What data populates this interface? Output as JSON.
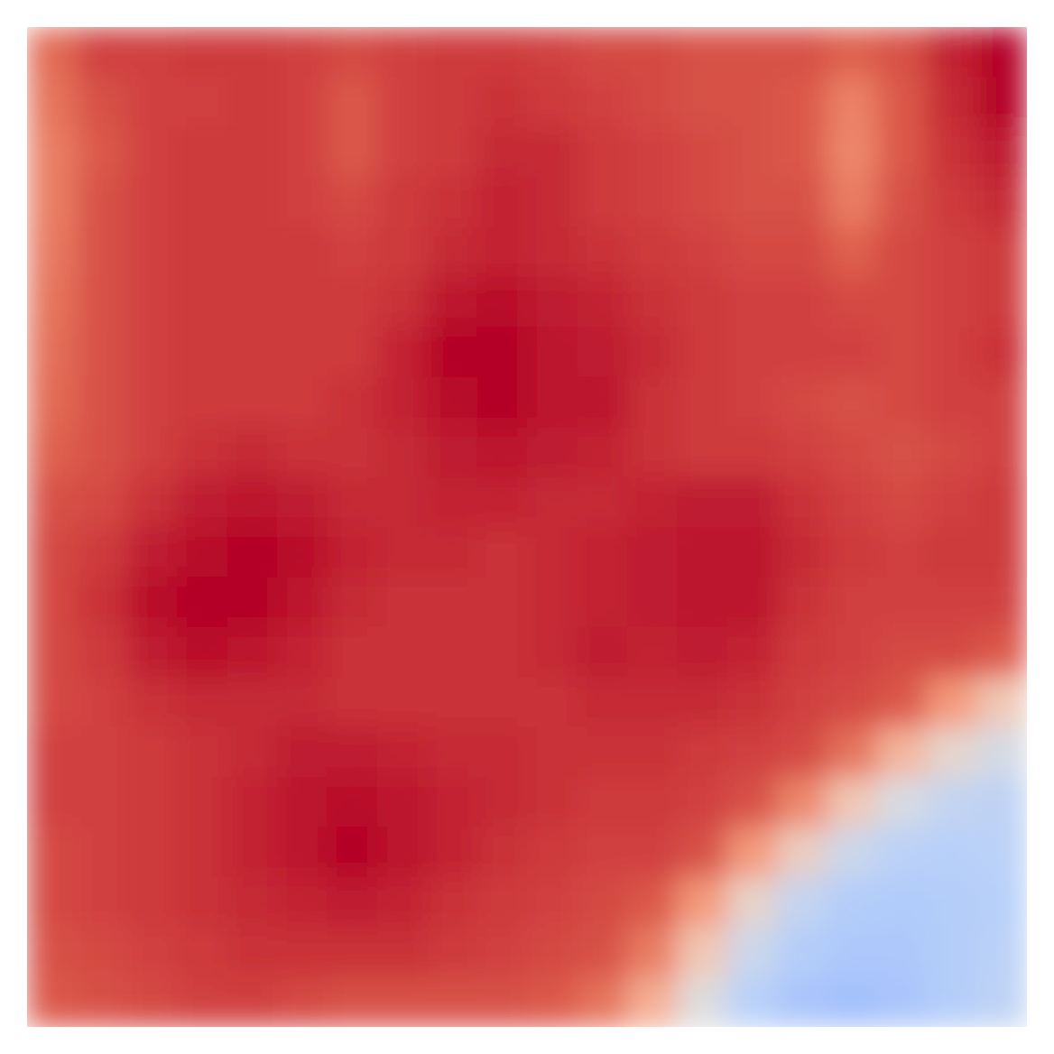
{
  "chart_data": {
    "type": "heatmap",
    "tick_labels": false,
    "color": "coolwarm",
    "color_range": [
      0,
      0.96
    ],
    "cells": [
      [
        0.82,
        0.88,
        0.88,
        0.89,
        0.89,
        0.88,
        0.87,
        0.88,
        0.89,
        0.89,
        0.88,
        0.87,
        0.87,
        0.86,
        0.86,
        0.86,
        0.84,
        0.86,
        0.92,
        0.96
      ],
      [
        0.8,
        0.86,
        0.88,
        0.88,
        0.89,
        0.88,
        0.85,
        0.88,
        0.89,
        0.9,
        0.89,
        0.88,
        0.87,
        0.86,
        0.86,
        0.85,
        0.77,
        0.85,
        0.91,
        0.96
      ],
      [
        0.78,
        0.85,
        0.88,
        0.89,
        0.89,
        0.88,
        0.85,
        0.88,
        0.89,
        0.91,
        0.91,
        0.89,
        0.88,
        0.87,
        0.86,
        0.85,
        0.76,
        0.85,
        0.9,
        0.93
      ],
      [
        0.78,
        0.86,
        0.88,
        0.89,
        0.89,
        0.88,
        0.87,
        0.89,
        0.9,
        0.92,
        0.91,
        0.89,
        0.88,
        0.87,
        0.86,
        0.86,
        0.78,
        0.86,
        0.89,
        0.91
      ],
      [
        0.79,
        0.86,
        0.88,
        0.89,
        0.89,
        0.89,
        0.88,
        0.89,
        0.91,
        0.92,
        0.91,
        0.9,
        0.89,
        0.88,
        0.87,
        0.87,
        0.84,
        0.87,
        0.88,
        0.89
      ],
      [
        0.8,
        0.86,
        0.88,
        0.89,
        0.89,
        0.89,
        0.89,
        0.9,
        0.94,
        0.95,
        0.93,
        0.92,
        0.9,
        0.89,
        0.88,
        0.88,
        0.87,
        0.87,
        0.88,
        0.89
      ],
      [
        0.81,
        0.86,
        0.88,
        0.89,
        0.89,
        0.89,
        0.89,
        0.92,
        0.96,
        0.96,
        0.94,
        0.93,
        0.91,
        0.89,
        0.88,
        0.88,
        0.88,
        0.87,
        0.88,
        0.9
      ],
      [
        0.82,
        0.86,
        0.88,
        0.89,
        0.89,
        0.89,
        0.9,
        0.92,
        0.95,
        0.96,
        0.94,
        0.94,
        0.9,
        0.89,
        0.88,
        0.87,
        0.86,
        0.87,
        0.88,
        0.88
      ],
      [
        0.84,
        0.86,
        0.88,
        0.9,
        0.91,
        0.9,
        0.9,
        0.91,
        0.93,
        0.94,
        0.93,
        0.92,
        0.9,
        0.89,
        0.89,
        0.88,
        0.87,
        0.86,
        0.87,
        0.88
      ],
      [
        0.86,
        0.87,
        0.9,
        0.93,
        0.94,
        0.93,
        0.91,
        0.91,
        0.92,
        0.92,
        0.91,
        0.91,
        0.92,
        0.93,
        0.93,
        0.9,
        0.88,
        0.87,
        0.88,
        0.89
      ],
      [
        0.87,
        0.89,
        0.93,
        0.95,
        0.96,
        0.95,
        0.92,
        0.91,
        0.91,
        0.9,
        0.91,
        0.92,
        0.93,
        0.94,
        0.94,
        0.91,
        0.89,
        0.88,
        0.89,
        0.89
      ],
      [
        0.87,
        0.9,
        0.95,
        0.96,
        0.96,
        0.94,
        0.91,
        0.9,
        0.9,
        0.9,
        0.91,
        0.92,
        0.93,
        0.94,
        0.94,
        0.9,
        0.88,
        0.88,
        0.88,
        0.88
      ],
      [
        0.87,
        0.89,
        0.93,
        0.95,
        0.94,
        0.92,
        0.9,
        0.9,
        0.9,
        0.9,
        0.91,
        0.93,
        0.92,
        0.93,
        0.92,
        0.89,
        0.88,
        0.87,
        0.87,
        0.85
      ],
      [
        0.87,
        0.88,
        0.9,
        0.91,
        0.91,
        0.91,
        0.9,
        0.9,
        0.9,
        0.9,
        0.9,
        0.91,
        0.91,
        0.91,
        0.9,
        0.88,
        0.87,
        0.85,
        0.72,
        0.58
      ],
      [
        0.88,
        0.88,
        0.89,
        0.9,
        0.91,
        0.93,
        0.93,
        0.92,
        0.91,
        0.91,
        0.9,
        0.9,
        0.9,
        0.89,
        0.88,
        0.87,
        0.8,
        0.64,
        0.52,
        0.45
      ],
      [
        0.88,
        0.88,
        0.89,
        0.9,
        0.92,
        0.94,
        0.95,
        0.94,
        0.92,
        0.91,
        0.9,
        0.89,
        0.89,
        0.88,
        0.86,
        0.76,
        0.58,
        0.46,
        0.4,
        0.38
      ],
      [
        0.87,
        0.88,
        0.89,
        0.9,
        0.92,
        0.94,
        0.96,
        0.94,
        0.92,
        0.9,
        0.89,
        0.88,
        0.88,
        0.86,
        0.72,
        0.55,
        0.42,
        0.37,
        0.36,
        0.37
      ],
      [
        0.87,
        0.88,
        0.89,
        0.9,
        0.91,
        0.92,
        0.93,
        0.92,
        0.9,
        0.89,
        0.88,
        0.87,
        0.85,
        0.72,
        0.53,
        0.4,
        0.35,
        0.34,
        0.35,
        0.36
      ],
      [
        0.86,
        0.87,
        0.88,
        0.89,
        0.9,
        0.9,
        0.9,
        0.9,
        0.89,
        0.88,
        0.87,
        0.86,
        0.78,
        0.58,
        0.42,
        0.35,
        0.33,
        0.33,
        0.35,
        0.37
      ],
      [
        0.85,
        0.86,
        0.87,
        0.88,
        0.88,
        0.87,
        0.86,
        0.86,
        0.86,
        0.86,
        0.85,
        0.8,
        0.66,
        0.48,
        0.36,
        0.32,
        0.3,
        0.32,
        0.35,
        0.38
      ]
    ]
  }
}
